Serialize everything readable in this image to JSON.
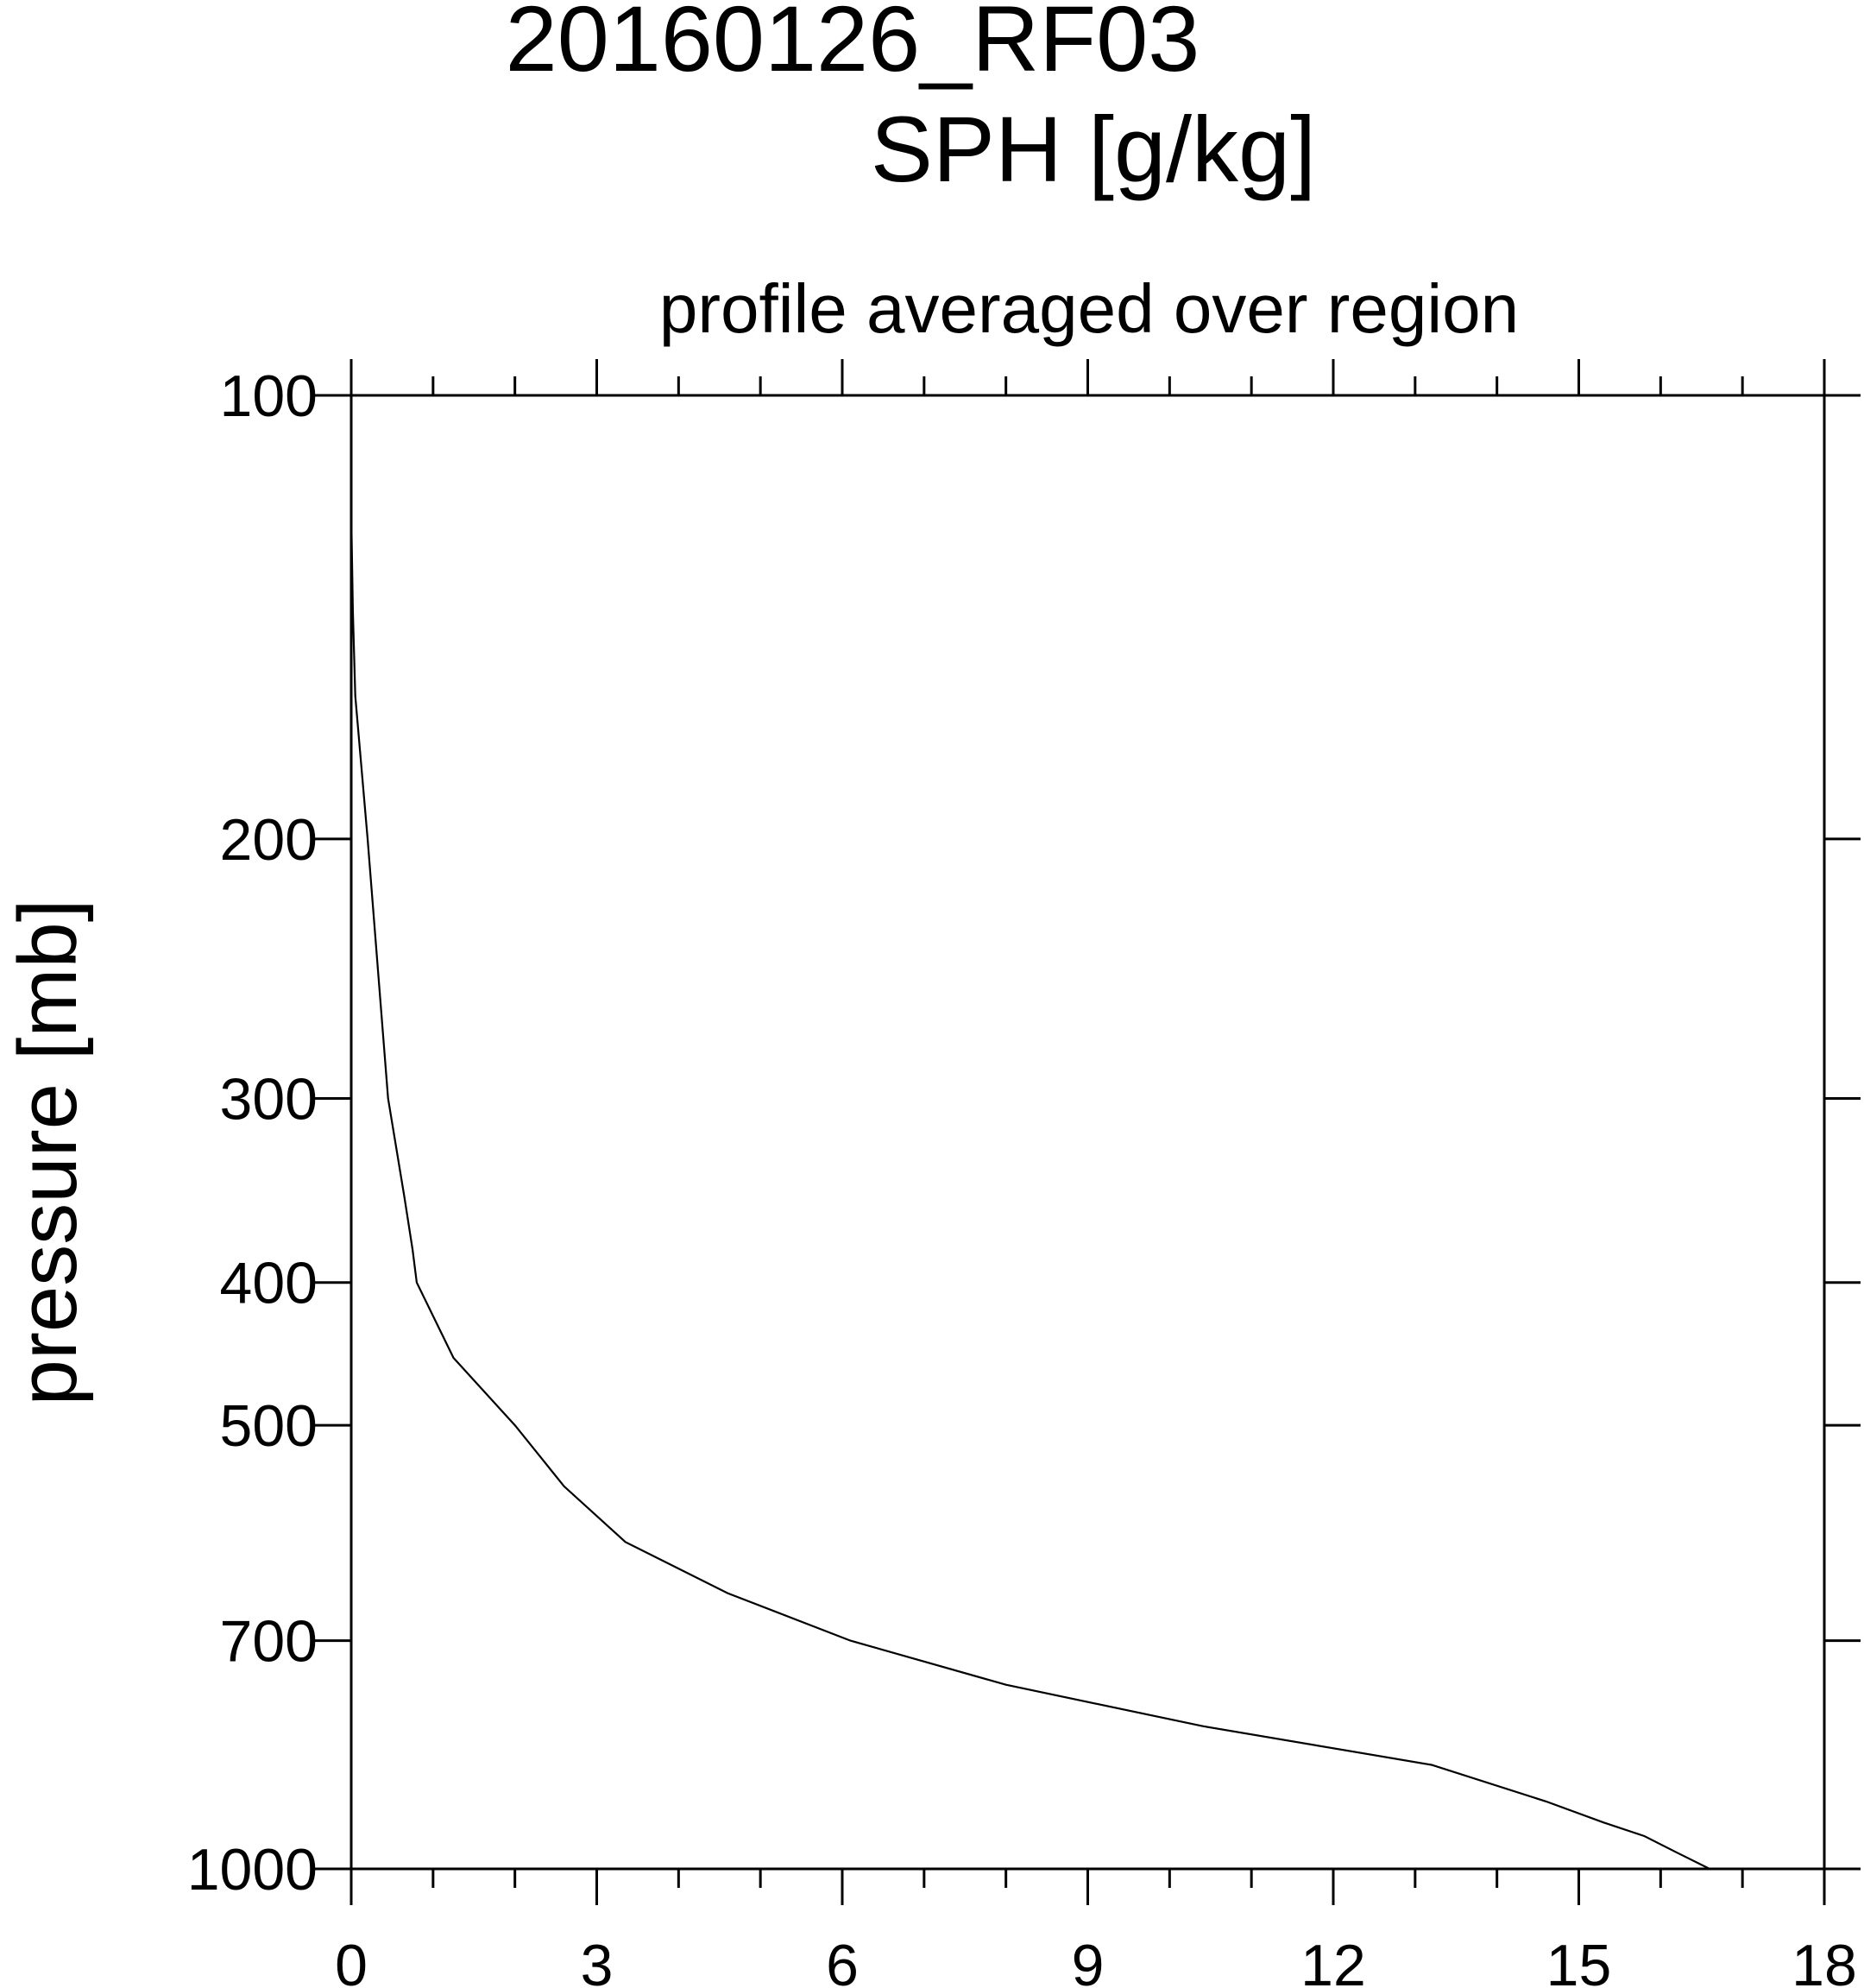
{
  "chart_data": {
    "type": "line",
    "title": "20160126_RF03",
    "variable_title": "SPH [g/kg]",
    "subtitle": "profile averaged over region",
    "xlabel": "",
    "ylabel": "pressure [mb]",
    "xlim": [
      0,
      18
    ],
    "ylim": [
      100,
      1000
    ],
    "y_scale": "log",
    "y_reversed": true,
    "grid": false,
    "x_major_ticks": [
      0,
      3,
      6,
      9,
      12,
      15,
      18
    ],
    "x_minor_ticks": [
      1,
      2,
      4,
      5,
      7,
      8,
      10,
      11,
      13,
      14,
      16,
      17
    ],
    "y_ticks": [
      100,
      200,
      300,
      400,
      500,
      700,
      1000
    ],
    "series": [
      {
        "color": "#000000",
        "x": [
          0.0,
          0.02,
          0.05,
          0.2,
          0.45,
          0.65,
          0.75,
          0.8,
          1.25,
          2.0,
          2.6,
          3.35,
          4.6,
          6.1,
          8.0,
          10.4,
          13.2,
          14.6,
          15.3,
          15.8,
          16.2,
          16.6
        ],
        "y": [
          120,
          140,
          160,
          200,
          300,
          350,
          380,
          400,
          450,
          500,
          550,
          600,
          650,
          700,
          750,
          800,
          850,
          900,
          930,
          950,
          975,
          1000
        ]
      }
    ]
  }
}
